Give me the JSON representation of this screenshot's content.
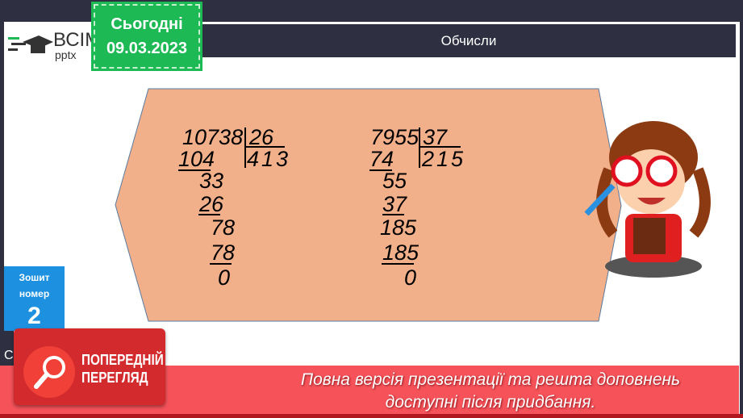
{
  "header": {
    "title": "Обчисли"
  },
  "logo": {
    "brand": "ВСІМ",
    "sub": "pptx"
  },
  "date_badge": {
    "label": "Сьогодні",
    "date": "09.03.2023"
  },
  "notebook": {
    "label1": "Зошит",
    "label2": "номер",
    "number": "2"
  },
  "side_letter": "С",
  "division1": {
    "dividend": "10738",
    "divisor": "26",
    "quotient": "413",
    "steps": [
      "104",
      "33",
      "26",
      "78",
      "78",
      "0"
    ]
  },
  "division2": {
    "dividend": "7955",
    "divisor": "37",
    "quotient": "215",
    "steps": [
      "74",
      "55",
      "37",
      "185",
      "185",
      "0"
    ]
  },
  "preview": {
    "line1": "ПОПЕРЕДНІЙ",
    "line2": "ПЕРЕГЛЯД"
  },
  "banner": {
    "line1": "Повна версія презентації та решта доповнень",
    "line2": "доступні після придбання."
  },
  "colors": {
    "panel": "#f2b08a",
    "badge": "#1db954",
    "banner": "#f5525a",
    "notebook": "#1e90e0",
    "dark": "#2e3042"
  }
}
